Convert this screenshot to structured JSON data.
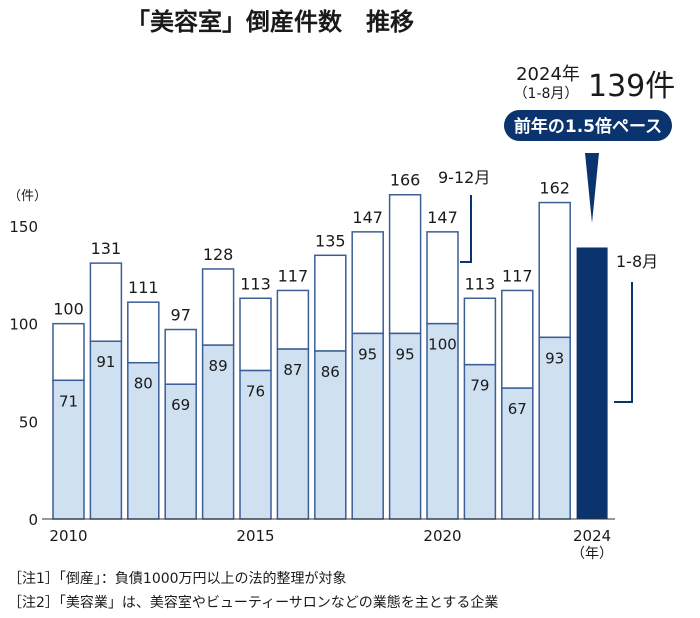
{
  "chart_data": {
    "type": "bar",
    "title": "「美容室」倒産件数　推移",
    "ylabel": "（件）",
    "xlabel": "（年）",
    "ylim": [
      0,
      166
    ],
    "yticks": [
      0,
      50,
      100,
      150
    ],
    "categories": [
      "2010",
      "2011",
      "2012",
      "2013",
      "2014",
      "2015",
      "2016",
      "2017",
      "2018",
      "2019",
      "2020",
      "2021",
      "2022",
      "2023",
      "2024"
    ],
    "xtick_labels": [
      "2010",
      "2015",
      "2020",
      "2024"
    ],
    "series": [
      {
        "name": "1-8月",
        "values": [
          71,
          91,
          80,
          69,
          89,
          76,
          87,
          86,
          95,
          95,
          100,
          79,
          67,
          93,
          139
        ]
      },
      {
        "name": "9-12月",
        "totals": [
          100,
          131,
          111,
          97,
          128,
          113,
          117,
          135,
          147,
          166,
          147,
          113,
          117,
          162,
          null
        ]
      }
    ],
    "stacked": true,
    "colors": {
      "lower": "#cfe0f1",
      "upper": "#ffffff",
      "border": "#3b5e95",
      "highlight": "#0b346e"
    },
    "annotations": {
      "year_label": "2024年",
      "period_label": "（1-8月）",
      "count": "139件",
      "badge": "前年の1.5倍ペース",
      "bracket_upper": "9-12月",
      "bracket_lower": "1-8月"
    },
    "grid": false,
    "legend": "none"
  },
  "notes": [
    "［注1］「倒産」：負債1000万円以上の法的整理が対象",
    "［注2］「美容業」は、美容室やビューティーサロンなどの業態を主とする企業"
  ]
}
